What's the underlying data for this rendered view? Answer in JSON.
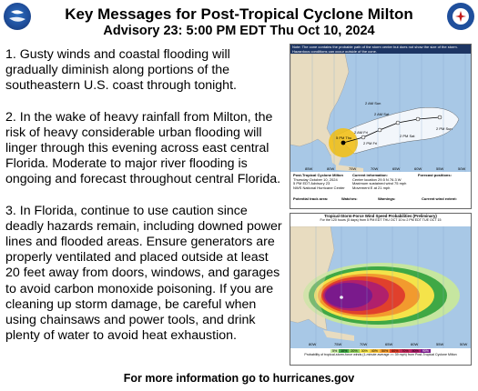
{
  "header": {
    "title": "Key Messages for Post-Tropical Cyclone Milton",
    "subtitle": "Advisory 23: 5:00 PM EDT Thu Oct 10, 2024"
  },
  "messages": [
    "1. Gusty winds and coastal flooding will gradually diminish along portions of the southeastern U.S. coast through tonight.",
    "2. In the wake of heavy rainfall from Milton, the risk of heavy considerable urban flooding will linger through this evening across east central Florida. Moderate to major river flooding is ongoing and forecast throughout central Florida.",
    "3. In Florida, continue to use caution since deadly hazards remain, including downed power lines and flooded areas. Ensure generators are properly ventilated and placed outside at least 20 feet away from doors, windows, and garages to avoid carbon monoxide poisoning. If you are cleaning up storm damage, be careful when using chainsaws and power tools, and drink plenty of water to avoid heat exhaustion."
  ],
  "footer": "For more information go to hurricanes.gov",
  "map1": {
    "note": "Note: The cone contains the probable path of the storm center but does not show the size of the storm. Hazardous conditions can occur outside of the cone.",
    "storm_name": "Post-Tropical Cyclone Milton",
    "storm_time": "Thursday October 10, 2024",
    "advisory": "5 PM EDT Advisory 23",
    "center": "NWS National Hurricane Center",
    "current_info_title": "Current information:",
    "center_location": "Center location 29.5 N 76.3 W",
    "max_wind": "Maximum sustained wind 75 mph",
    "movement": "Movement E at 21 mph",
    "forecast_title": "Forecast positions:",
    "track_labels": [
      "2 AM Sun",
      "2 AM Sat",
      "2 PM Sat",
      "2 PM Fri",
      "2 AM Fri",
      "2 PM Sun",
      "5 PM Thu"
    ],
    "lon_labels": [
      "85W",
      "80W",
      "75W",
      "70W",
      "65W",
      "60W",
      "55W",
      "50W"
    ],
    "legend_track": "Potential track area:",
    "legend_watches": "Watches:",
    "legend_warnings": "Warnings:",
    "legend_wind": "Current wind extent:"
  },
  "map2": {
    "title": "Tropical-Storm-Force Wind Speed Probabilities (Preliminary)",
    "subtitle": "For the 120 hours (5 days) from 5 PM EDT THU OCT 10 to 2 PM EDT TUE OCT 15",
    "legend_text": "Probability of tropical-storm-force winds (1-minute average >= 39 mph) from Post-Tropical Cyclone Milton",
    "legend_scale": [
      "5%",
      "10%",
      "20%",
      "30%",
      "40%",
      "50%",
      "60%",
      "70%",
      "80%",
      "90%"
    ],
    "lon_labels": [
      "80W",
      "75W",
      "70W",
      "65W",
      "60W",
      "55W",
      "50W"
    ]
  }
}
